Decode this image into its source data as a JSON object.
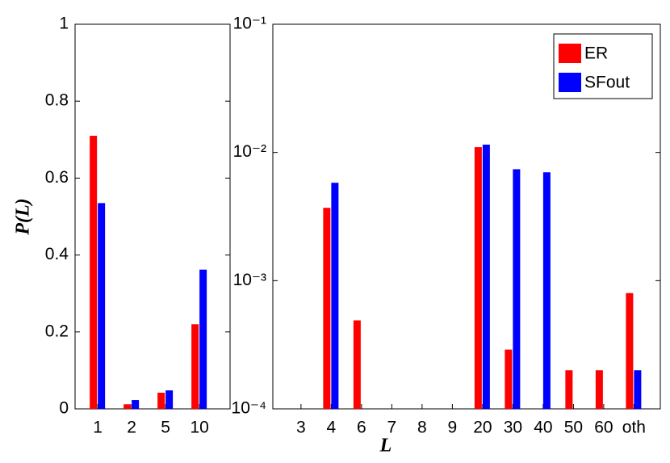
{
  "chart_data": [
    {
      "type": "bar",
      "ylabel": "P(L)",
      "categories": [
        "1",
        "2",
        "5",
        "10"
      ],
      "series": [
        {
          "color": "#ff0000",
          "values": [
            0.71,
            0.012,
            0.042,
            0.22
          ]
        },
        {
          "color": "#0000ff",
          "values": [
            0.535,
            0.023,
            0.048,
            0.362
          ]
        }
      ],
      "ylim": [
        0,
        1
      ],
      "yticks": [
        0,
        0.2,
        0.4,
        0.6,
        0.8,
        1
      ]
    },
    {
      "type": "bar",
      "xlabel": "L",
      "log_scale": true,
      "legend": "upper right",
      "categories": [
        "3",
        "4",
        "6",
        "7",
        "8",
        "9",
        "20",
        "30",
        "40",
        "50",
        "60",
        "oth"
      ],
      "series": [
        {
          "name": "ER",
          "color": "#ff0000",
          "values": [
            null,
            0.0037,
            0.00049,
            null,
            null,
            null,
            0.011,
            0.00029,
            null,
            0.0002,
            0.0002,
            0.0008
          ]
        },
        {
          "name": "SFout",
          "color": "#0000ff",
          "values": [
            null,
            0.0058,
            null,
            null,
            null,
            null,
            0.0115,
            0.0074,
            0.007,
            null,
            null,
            0.0002
          ]
        }
      ],
      "ylim": [
        0.0001,
        0.1
      ],
      "yticks": [
        {
          "value": 0.0001,
          "label": "10⁻⁴"
        },
        {
          "value": 0.001,
          "label": "10⁻³"
        },
        {
          "value": 0.01,
          "label": "10⁻²"
        },
        {
          "value": 0.1,
          "label": "10⁻¹"
        }
      ]
    }
  ]
}
